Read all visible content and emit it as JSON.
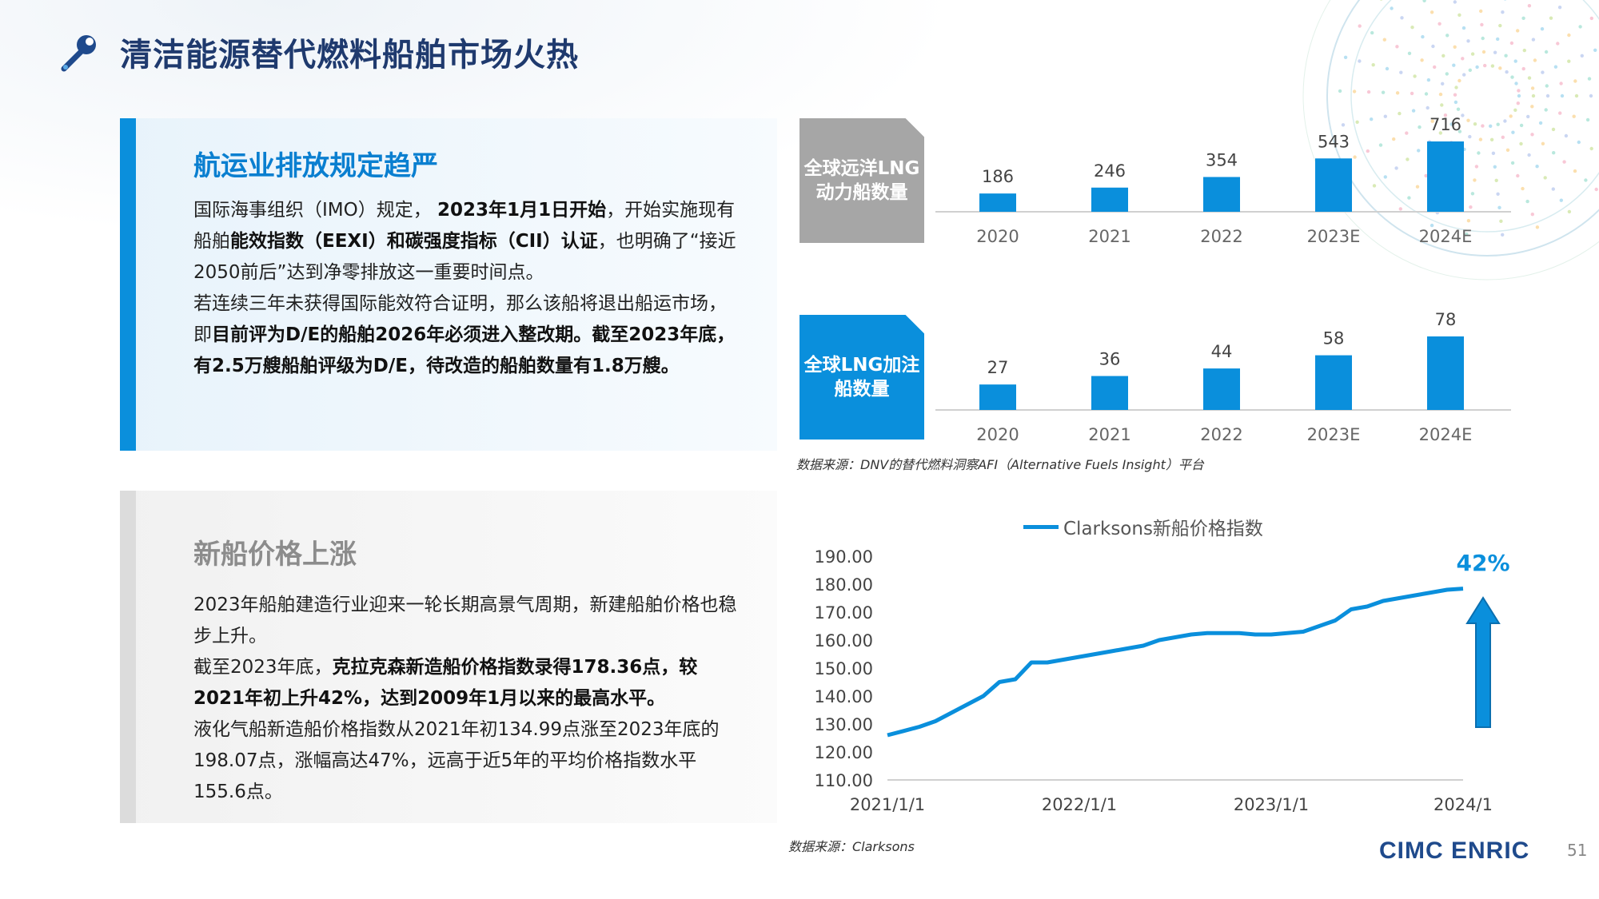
{
  "title": "清洁能源替代燃料船舶市场火热",
  "section1": {
    "heading": "航运业排放规定趋严",
    "paragraphs": [
      [
        {
          "t": "国际海事组织（IMO）规定， ",
          "b": false
        },
        {
          "t": "2023年1月1日开始",
          "b": true
        },
        {
          "t": "，开始实施现有船舶",
          "b": false
        },
        {
          "t": "能效指数（EEXI）和碳强度指标（CII）认证",
          "b": true
        },
        {
          "t": "，也明确了“接近2050前后”达到净零排放这一重要时间点。",
          "b": false
        }
      ],
      [
        {
          "t": "若连续三年未获得国际能效符合证明，那么该船将退出船运市场，即",
          "b": false
        },
        {
          "t": "目前评为D/E的船舶2026年必须进入整改期。截至2023年底，有2.5万艘船舶评级为D/E，待改造的船舶数量有1.8万艘。",
          "b": true
        }
      ]
    ]
  },
  "section2": {
    "heading": "新船价格上涨",
    "paragraphs": [
      [
        {
          "t": "2023年船舶建造行业迎来一轮长期高景气周期，新建船舶价格也稳步上升。",
          "b": false
        }
      ],
      [
        {
          "t": "截至2023年底，",
          "b": false
        },
        {
          "t": "克拉克森新造船价格指数录得178.36点，较2021年初上升42%，达到2009年1月以来的最高水平。",
          "b": true
        }
      ],
      [
        {
          "t": "液化气船新造船价格指数从2021年初134.99点涨至2023年底的198.07点，涨幅高达47%，远高于近5年的平均价格指数水平155.6点。",
          "b": false
        }
      ]
    ]
  },
  "chart1_label": "全球远洋LNG动力船数量",
  "chart2_label": "全球LNG加注船数量",
  "source1": "数据来源：DNV的替代燃料洞察AFI（Alternative Fuels Insight）平台",
  "source2": "数据来源：Clarksons",
  "line_annotation": "42%",
  "brand": "CIMC ENRIC",
  "page_number": "51",
  "colors": {
    "accent": "#0a8fdc",
    "title": "#1f3a6e",
    "grey_box": "#a6a6a6"
  },
  "chart_data": [
    {
      "type": "bar",
      "title": "",
      "categories": [
        "2020",
        "2021",
        "2022",
        "2023E",
        "2024E"
      ],
      "values": [
        186,
        246,
        354,
        543,
        716
      ],
      "ylim": [
        0,
        716
      ]
    },
    {
      "type": "bar",
      "title": "",
      "categories": [
        "2020",
        "2021",
        "2022",
        "2023E",
        "2024E"
      ],
      "values": [
        27,
        36,
        44,
        58,
        78
      ],
      "ylim": [
        0,
        78
      ]
    },
    {
      "type": "line",
      "series_name": "Clarksons新船价格指数",
      "x_ticks": [
        "2021/1/1",
        "2022/1/1",
        "2023/1/1",
        "2024/1"
      ],
      "y_ticks": [
        "110.00",
        "120.00",
        "130.00",
        "140.00",
        "150.00",
        "160.00",
        "170.00",
        "180.00",
        "190.00"
      ],
      "ylim": [
        110,
        190
      ],
      "x": [
        "2021-01",
        "2021-02",
        "2021-03",
        "2021-04",
        "2021-05",
        "2021-06",
        "2021-07",
        "2021-08",
        "2021-09",
        "2021-10",
        "2021-11",
        "2021-12",
        "2022-01",
        "2022-02",
        "2022-03",
        "2022-04",
        "2022-05",
        "2022-06",
        "2022-07",
        "2022-08",
        "2022-09",
        "2022-10",
        "2022-11",
        "2022-12",
        "2023-01",
        "2023-02",
        "2023-03",
        "2023-04",
        "2023-05",
        "2023-06",
        "2023-07",
        "2023-08",
        "2023-09",
        "2023-10",
        "2023-11",
        "2023-12",
        "2024-01"
      ],
      "values": [
        126,
        127.5,
        129,
        131,
        134,
        137,
        140,
        145,
        146,
        152,
        152,
        153,
        154,
        155,
        156,
        157,
        158,
        160,
        161,
        162,
        162.5,
        162.5,
        162.5,
        162,
        162,
        162.5,
        163,
        165,
        167,
        171,
        172,
        174,
        175,
        176,
        177,
        178,
        178.4
      ]
    }
  ]
}
